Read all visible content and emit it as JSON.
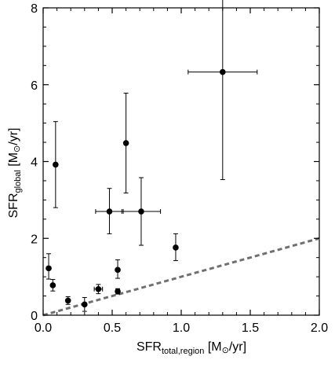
{
  "chart_data": {
    "type": "scatter",
    "xlim": [
      0.0,
      2.0
    ],
    "ylim": [
      0,
      8
    ],
    "x_ticks": [
      0.0,
      0.5,
      1.0,
      1.5,
      2.0
    ],
    "x_tick_labels": [
      "0.0",
      "0.5",
      "1.0",
      "1.5",
      "2.0"
    ],
    "y_ticks": [
      0,
      2,
      4,
      6,
      8
    ],
    "y_tick_labels": [
      "0",
      "2",
      "4",
      "6",
      "8"
    ],
    "xlabel": {
      "main": "SFR",
      "sub": "total,region",
      "unit": " [M",
      "sun": "⊙",
      "tail": "/yr]"
    },
    "ylabel": {
      "main": "SFR",
      "sub": "global",
      "unit": " [M",
      "sun": "⊙",
      "tail": "/yr]"
    },
    "grid": false,
    "points": [
      {
        "x": 0.04,
        "y": 1.22,
        "yerr": [
          0.28,
          0.38
        ]
      },
      {
        "x": 0.07,
        "y": 0.78,
        "yerr": [
          0.15,
          0.15
        ]
      },
      {
        "x": 0.09,
        "y": 3.92,
        "yerr": [
          1.12,
          1.12
        ]
      },
      {
        "x": 0.18,
        "y": 0.38,
        "yerr": [
          0.1,
          0.1
        ]
      },
      {
        "x": 0.3,
        "y": 0.28,
        "yerr": [
          0.18,
          0.18
        ]
      },
      {
        "x": 0.4,
        "y": 0.68,
        "xerr": [
          0.03,
          0.03
        ],
        "yerr": [
          0.12,
          0.12
        ]
      },
      {
        "x": 0.48,
        "y": 2.7,
        "xerr": [
          0.1,
          0.1
        ],
        "yerr": [
          0.58,
          0.6
        ]
      },
      {
        "x": 0.54,
        "y": 1.18,
        "yerr": [
          0.22,
          0.26
        ]
      },
      {
        "x": 0.54,
        "y": 0.62,
        "yerr": [
          0.07,
          0.07
        ]
      },
      {
        "x": 0.6,
        "y": 4.48,
        "yerr": [
          1.3,
          1.3
        ]
      },
      {
        "x": 0.71,
        "y": 2.7,
        "xerr": [
          0.14,
          0.14
        ],
        "yerr": [
          0.88,
          0.88
        ]
      },
      {
        "x": 0.96,
        "y": 1.76,
        "yerr": [
          0.34,
          0.36
        ]
      },
      {
        "x": 1.3,
        "y": 6.33,
        "xerr": [
          0.25,
          0.25
        ],
        "yerr": [
          2.8,
          2.8
        ]
      }
    ],
    "reference_line": {
      "style": "dashed",
      "color": "#707070",
      "x": [
        0.0,
        2.0
      ],
      "y": [
        0.0,
        2.0
      ]
    }
  }
}
